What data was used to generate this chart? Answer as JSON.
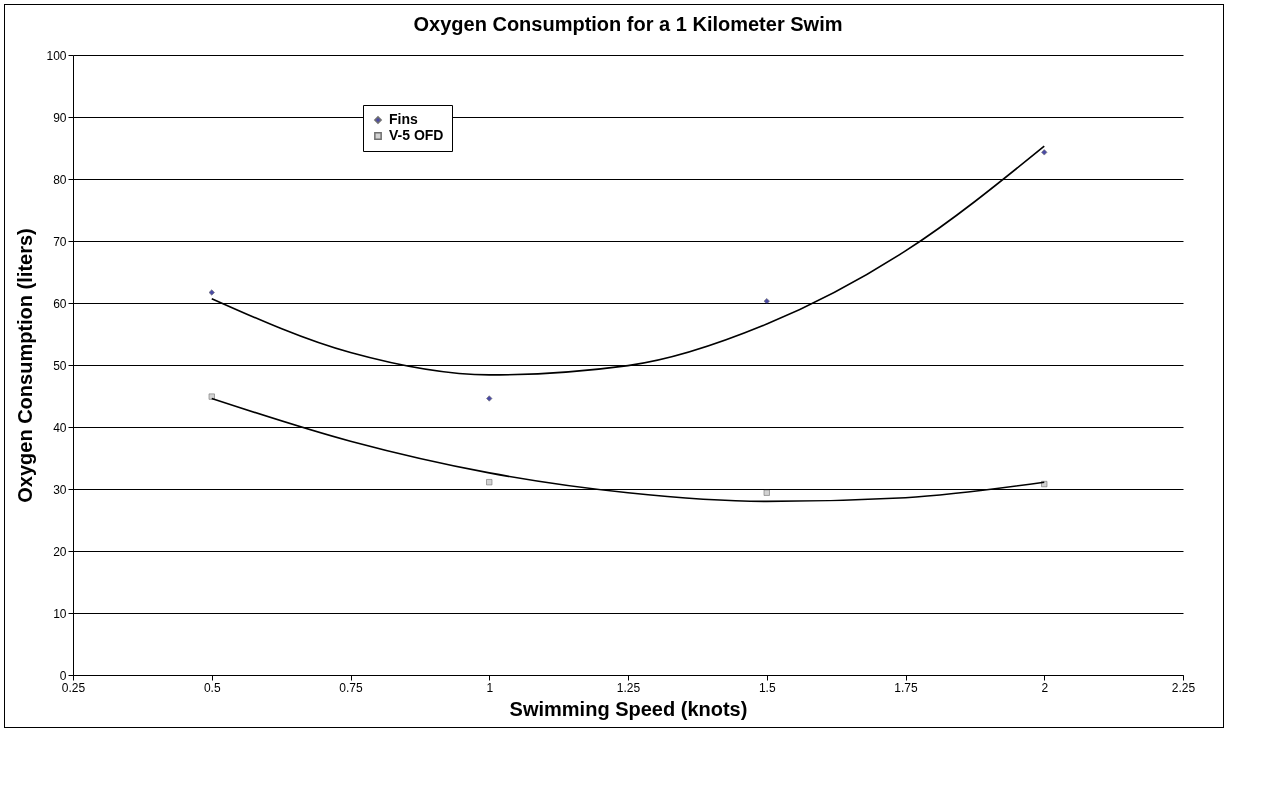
{
  "chart_data": {
    "type": "scatter",
    "title": "Oxygen Consumption for a 1 Kilometer Swim",
    "xlabel": "Swimming Speed (knots)",
    "ylabel": "Oxygen Consumption (liters)",
    "xlim": [
      0.25,
      2.25
    ],
    "xticks": [
      0.25,
      0.5,
      0.75,
      1,
      1.25,
      1.5,
      1.75,
      2,
      2.25
    ],
    "ylim": [
      0,
      100
    ],
    "yticks": [
      0,
      10,
      20,
      30,
      40,
      50,
      60,
      70,
      80,
      90,
      100
    ],
    "grid": "y",
    "legend": "top left",
    "series": [
      {
        "name": "Fins",
        "marker": "diamond",
        "color": "#000080",
        "x": [
          0.5,
          1,
          1.5,
          2
        ],
        "values": [
          61.7,
          44.6,
          60.3,
          84.3
        ]
      },
      {
        "name": "V-5 OFD",
        "marker": "square",
        "color": "#c0c0c0",
        "x": [
          0.5,
          1,
          1.5,
          2
        ],
        "values": [
          44.9,
          31.1,
          29.4,
          30.8
        ]
      },
      {
        "type": "line",
        "color": "#000000",
        "x": [
          0.5,
          0.75,
          1,
          1.25,
          1.5,
          1.75,
          2
        ],
        "values": [
          60.7,
          52.0,
          48.4,
          49.9,
          56.6,
          68.4,
          85.3
        ]
      },
      {
        "type": "line",
        "color": "#000000",
        "x": [
          0.5,
          0.75,
          1,
          1.25,
          1.5,
          1.75,
          2
        ],
        "values": [
          44.6,
          37.7,
          32.6,
          29.4,
          28.0,
          28.6,
          31.1
        ]
      }
    ]
  }
}
